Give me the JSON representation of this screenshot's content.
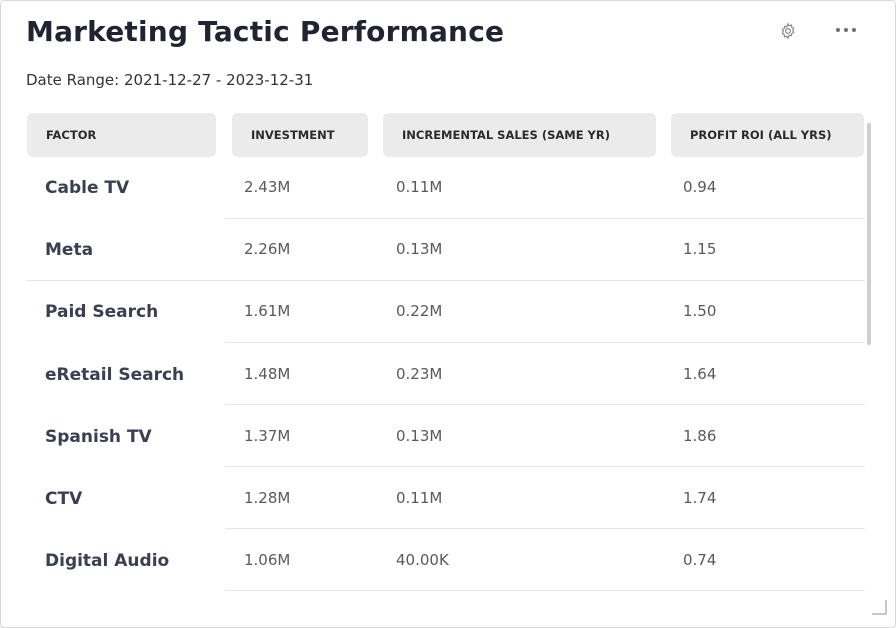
{
  "widget": {
    "title": "Marketing Tactic Performance",
    "date_range": "Date Range: 2021-12-27 - 2023-12-31"
  },
  "icons": {
    "settings": "gear-icon",
    "more": "more-icon"
  },
  "table": {
    "headers": [
      "FACTOR",
      "INVESTMENT",
      "INCREMENTAL SALES (SAME YR)",
      "PROFIT ROI (ALL YRS)"
    ],
    "rows": [
      [
        "Cable TV",
        "2.43M",
        "0.11M",
        "0.94"
      ],
      [
        "Meta",
        "2.26M",
        "0.13M",
        "1.15"
      ],
      [
        "Paid Search",
        "1.61M",
        "0.22M",
        "1.50"
      ],
      [
        "eRetail Search",
        "1.48M",
        "0.23M",
        "1.64"
      ],
      [
        "Spanish TV",
        "1.37M",
        "0.13M",
        "1.86"
      ],
      [
        "CTV",
        "1.28M",
        "0.11M",
        "1.74"
      ],
      [
        "Digital Audio",
        "1.06M",
        "40.00K",
        "0.74"
      ]
    ]
  },
  "colors": {
    "header_bg": "#ebebeb",
    "title": "#1f2332",
    "factor_text": "#3a3f52",
    "cell_text": "#5a5a5a"
  }
}
